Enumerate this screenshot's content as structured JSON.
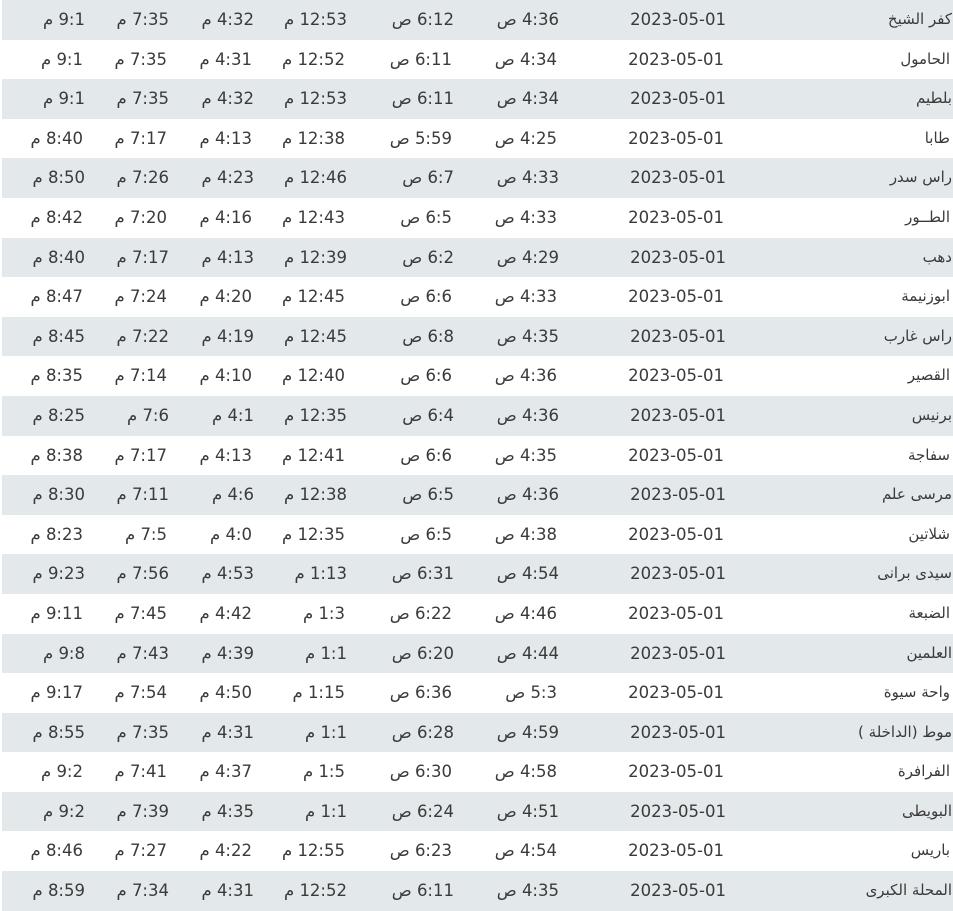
{
  "colors": {
    "row_alt": "#e3e8eb",
    "row": "#ffffff",
    "text": "#3a3a3a"
  },
  "rows": [
    {
      "city": "كفر الشيخ",
      "date": "2023-05-01",
      "fajr": "4:36 ص",
      "sunrise": "6:12 ص",
      "dhuhr": "12:53 م",
      "asr": "4:32 م",
      "maghrib": "7:35 م",
      "isha": "9:1 م"
    },
    {
      "city": "الحامول",
      "date": "2023-05-01",
      "fajr": "4:34 ص",
      "sunrise": "6:11 ص",
      "dhuhr": "12:52 م",
      "asr": "4:31 م",
      "maghrib": "7:35 م",
      "isha": "9:1 م"
    },
    {
      "city": "بلطيم",
      "date": "2023-05-01",
      "fajr": "4:34 ص",
      "sunrise": "6:11 ص",
      "dhuhr": "12:53 م",
      "asr": "4:32 م",
      "maghrib": "7:35 م",
      "isha": "9:1 م"
    },
    {
      "city": "طابا",
      "date": "2023-05-01",
      "fajr": "4:25 ص",
      "sunrise": "5:59 ص",
      "dhuhr": "12:38 م",
      "asr": "4:13 م",
      "maghrib": "7:17 م",
      "isha": "8:40 م"
    },
    {
      "city": "راس سدر",
      "date": "2023-05-01",
      "fajr": "4:33 ص",
      "sunrise": "6:7 ص",
      "dhuhr": "12:46 م",
      "asr": "4:23 م",
      "maghrib": "7:26 م",
      "isha": "8:50 م"
    },
    {
      "city": "الطــور",
      "date": "2023-05-01",
      "fajr": "4:33 ص",
      "sunrise": "6:5 ص",
      "dhuhr": "12:43 م",
      "asr": "4:16 م",
      "maghrib": "7:20 م",
      "isha": "8:42 م"
    },
    {
      "city": "دهب",
      "date": "2023-05-01",
      "fajr": "4:29 ص",
      "sunrise": "6:2 ص",
      "dhuhr": "12:39 م",
      "asr": "4:13 م",
      "maghrib": "7:17 م",
      "isha": "8:40 م"
    },
    {
      "city": "ابوزنيمة",
      "date": "2023-05-01",
      "fajr": "4:33 ص",
      "sunrise": "6:6 ص",
      "dhuhr": "12:45 م",
      "asr": "4:20 م",
      "maghrib": "7:24 م",
      "isha": "8:47 م"
    },
    {
      "city": "راس غارب",
      "date": "2023-05-01",
      "fajr": "4:35 ص",
      "sunrise": "6:8 ص",
      "dhuhr": "12:45 م",
      "asr": "4:19 م",
      "maghrib": "7:22 م",
      "isha": "8:45 م"
    },
    {
      "city": "القصير",
      "date": "2023-05-01",
      "fajr": "4:36 ص",
      "sunrise": "6:6 ص",
      "dhuhr": "12:40 م",
      "asr": "4:10 م",
      "maghrib": "7:14 م",
      "isha": "8:35 م"
    },
    {
      "city": "برنيس",
      "date": "2023-05-01",
      "fajr": "4:36 ص",
      "sunrise": "6:4 ص",
      "dhuhr": "12:35 م",
      "asr": "4:1 م",
      "maghrib": "7:6 م",
      "isha": "8:25 م"
    },
    {
      "city": "سفاجة",
      "date": "2023-05-01",
      "fajr": "4:35 ص",
      "sunrise": "6:6 ص",
      "dhuhr": "12:41 م",
      "asr": "4:13 م",
      "maghrib": "7:17 م",
      "isha": "8:38 م"
    },
    {
      "city": "مرسى علم",
      "date": "2023-05-01",
      "fajr": "4:36 ص",
      "sunrise": "6:5 ص",
      "dhuhr": "12:38 م",
      "asr": "4:6 م",
      "maghrib": "7:11 م",
      "isha": "8:30 م"
    },
    {
      "city": "شلاتين",
      "date": "2023-05-01",
      "fajr": "4:38 ص",
      "sunrise": "6:5 ص",
      "dhuhr": "12:35 م",
      "asr": "4:0 م",
      "maghrib": "7:5 م",
      "isha": "8:23 م"
    },
    {
      "city": "سيدى برانى",
      "date": "2023-05-01",
      "fajr": "4:54 ص",
      "sunrise": "6:31 ص",
      "dhuhr": "1:13 م",
      "asr": "4:53 م",
      "maghrib": "7:56 م",
      "isha": "9:23 م"
    },
    {
      "city": "الضبعة",
      "date": "2023-05-01",
      "fajr": "4:46 ص",
      "sunrise": "6:22 ص",
      "dhuhr": "1:3 م",
      "asr": "4:42 م",
      "maghrib": "7:45 م",
      "isha": "9:11 م"
    },
    {
      "city": "العلمين",
      "date": "2023-05-01",
      "fajr": "4:44 ص",
      "sunrise": "6:20 ص",
      "dhuhr": "1:1 م",
      "asr": "4:39 م",
      "maghrib": "7:43 م",
      "isha": "9:8 م"
    },
    {
      "city": "واحة سيوة",
      "date": "2023-05-01",
      "fajr": "5:3 ص",
      "sunrise": "6:36 ص",
      "dhuhr": "1:15 م",
      "asr": "4:50 م",
      "maghrib": "7:54 م",
      "isha": "9:17 م"
    },
    {
      "city": "موط (الداخلة )",
      "date": "2023-05-01",
      "fajr": "4:59 ص",
      "sunrise": "6:28 ص",
      "dhuhr": "1:1 م",
      "asr": "4:31 م",
      "maghrib": "7:35 م",
      "isha": "8:55 م"
    },
    {
      "city": "الفرافرة",
      "date": "2023-05-01",
      "fajr": "4:58 ص",
      "sunrise": "6:30 ص",
      "dhuhr": "1:5 م",
      "asr": "4:37 م",
      "maghrib": "7:41 م",
      "isha": "9:2 م"
    },
    {
      "city": "البويطى",
      "date": "2023-05-01",
      "fajr": "4:51 ص",
      "sunrise": "6:24 ص",
      "dhuhr": "1:1 م",
      "asr": "4:35 م",
      "maghrib": "7:39 م",
      "isha": "9:2 م"
    },
    {
      "city": "باريس",
      "date": "2023-05-01",
      "fajr": "4:54 ص",
      "sunrise": "6:23 ص",
      "dhuhr": "12:55 م",
      "asr": "4:22 م",
      "maghrib": "7:27 م",
      "isha": "8:46 م"
    },
    {
      "city": "المحلة الكبرى",
      "date": "2023-05-01",
      "fajr": "4:35 ص",
      "sunrise": "6:11 ص",
      "dhuhr": "12:52 م",
      "asr": "4:31 م",
      "maghrib": "7:34 م",
      "isha": "8:59 م"
    }
  ]
}
